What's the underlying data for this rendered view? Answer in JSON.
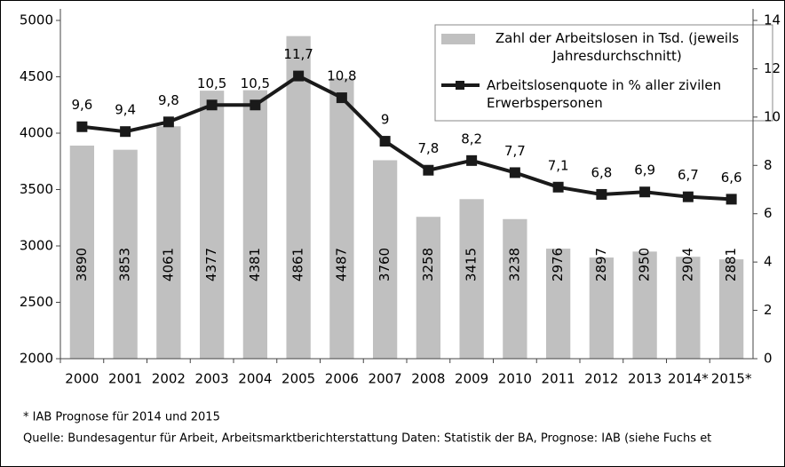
{
  "chart_data": {
    "type": "bar_line",
    "categories": [
      "2000",
      "2001",
      "2002",
      "2003",
      "2004",
      "2005",
      "2006",
      "2007",
      "2008",
      "2009",
      "2010",
      "2011",
      "2012",
      "2013",
      "2014*",
      "2015*"
    ],
    "series": [
      {
        "name": "Zahl der Arbeitslosen in Tsd. (jeweils Jahresdurchschnitt)",
        "type": "bar",
        "color": "#c0c0c0",
        "values": [
          3890,
          3853,
          4061,
          4377,
          4381,
          4861,
          4487,
          3760,
          3258,
          3415,
          3238,
          2976,
          2897,
          2950,
          2904,
          2881
        ]
      },
      {
        "name": "Arbeitslosenquote in % aller zivilen Erwerbspersonen",
        "type": "line",
        "axis": "y2",
        "color": "#1a1a1a",
        "values": [
          9.6,
          9.4,
          9.8,
          10.5,
          10.5,
          11.7,
          10.8,
          9,
          7.8,
          8.2,
          7.7,
          7.1,
          6.8,
          6.9,
          6.7,
          6.6
        ],
        "value_labels": [
          "9,6",
          "9,4",
          "9,8",
          "10,5",
          "10,5",
          "11,7",
          "10,8",
          "9",
          "7,8",
          "8,2",
          "7,7",
          "7,1",
          "6,8",
          "6,9",
          "6,7",
          "6,6"
        ]
      }
    ],
    "ylim": [
      2000,
      5000
    ],
    "yticks": [
      2000,
      2500,
      3000,
      3500,
      4000,
      4500,
      5000
    ],
    "y2lim": [
      0,
      14
    ],
    "y2ticks": [
      0,
      2,
      4,
      6,
      8,
      10,
      12,
      14
    ],
    "grid": false,
    "notes": [
      "* IAB Prognose für 2014 und 2015",
      "Quelle: Bundesagentur für Arbeit, Arbeitsmarktberichterstattung Daten: Statistik der BA, Prognose: IAB (siehe  Fuchs et"
    ]
  }
}
